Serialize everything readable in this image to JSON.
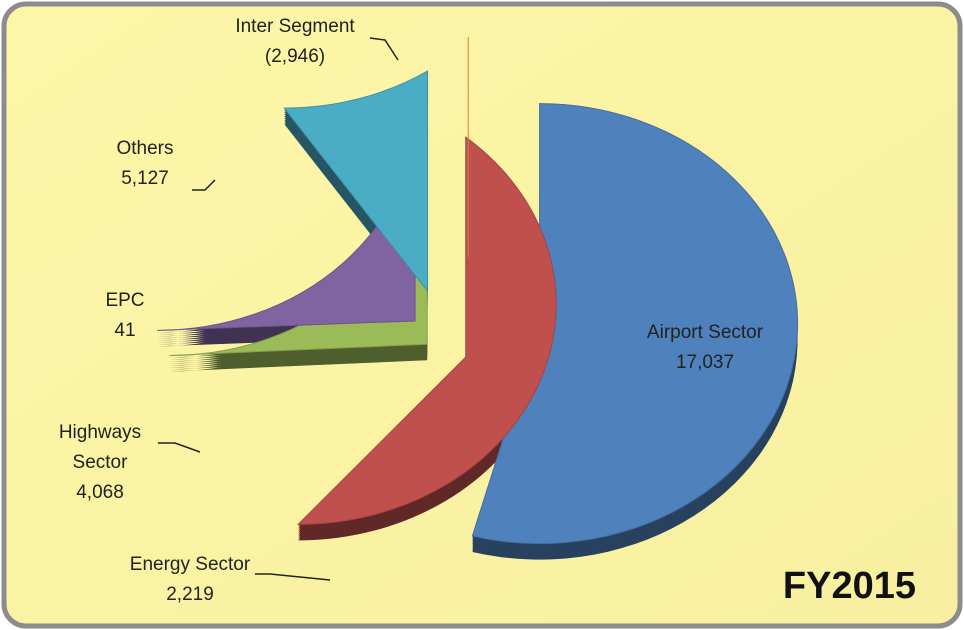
{
  "chart_data": {
    "type": "pie",
    "annotation": "FY2015",
    "categories": [
      "Airport Sector",
      "Energy Sector",
      "Highways Sector",
      "EPC",
      "Others",
      "Inter Segment"
    ],
    "values": [
      17037,
      2219,
      4068,
      41,
      5127,
      -2946
    ],
    "value_labels": [
      "17,037",
      "2,219",
      "4,068",
      "41",
      "5,127",
      "(2,946)"
    ],
    "colors": [
      "#4f81bd",
      "#c0504d",
      "#9bbb59",
      "#8064a2",
      "#4bacc6",
      "#f79646"
    ]
  }
}
